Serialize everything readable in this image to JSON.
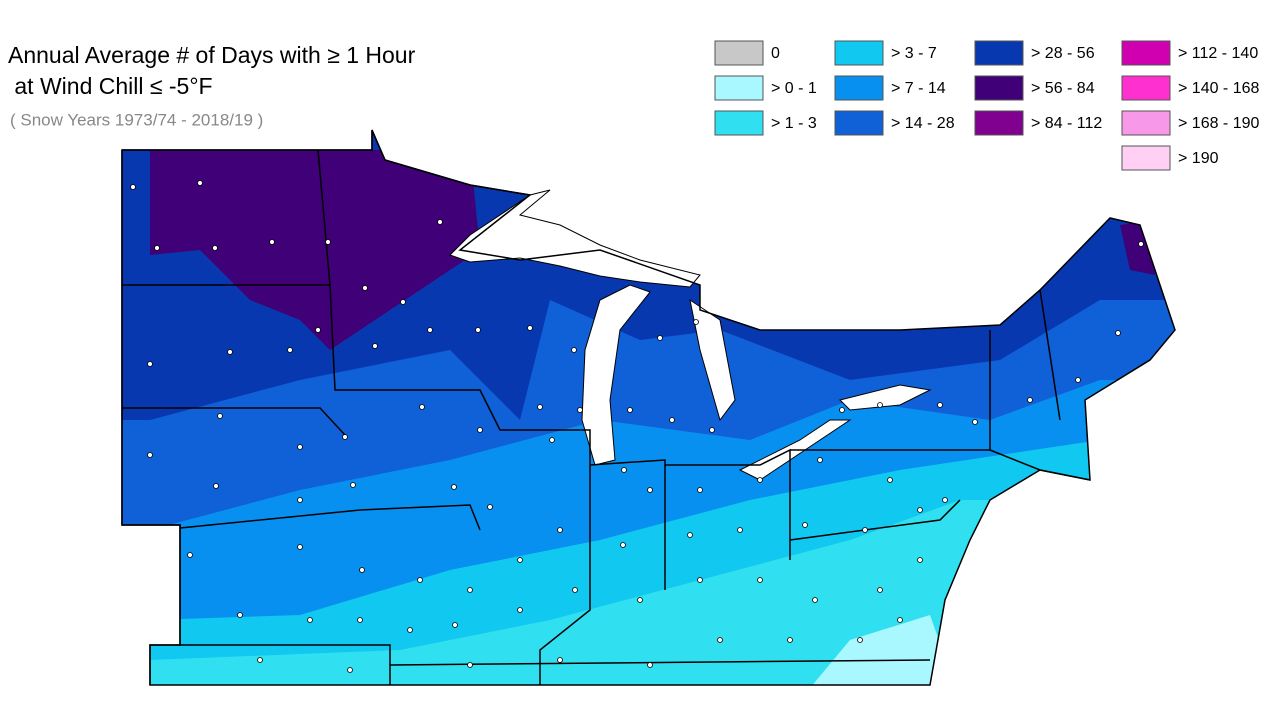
{
  "header": {
    "title_lines": [
      "Annual Average # of Days with ≥ 1 Hour",
      " at Wind Chill ≤ -5°F"
    ],
    "subtitle": "( Snow Years 1973/74 - 2018/19 )"
  },
  "legend": {
    "items": [
      {
        "label": "0",
        "color": "#c8c8c8"
      },
      {
        "label": "> 0 - 1",
        "color": "#aaf8ff"
      },
      {
        "label": "> 1 - 3",
        "color": "#30e0f0"
      },
      {
        "label": "> 3 - 7",
        "color": "#10c8f0"
      },
      {
        "label": "> 7 - 14",
        "color": "#0890f0"
      },
      {
        "label": "> 14 - 28",
        "color": "#1060d8"
      },
      {
        "label": "> 28 - 56",
        "color": "#0838b0"
      },
      {
        "label": "> 56 - 84",
        "color": "#400078"
      },
      {
        "label": "> 84 - 112",
        "color": "#800090"
      },
      {
        "label": "> 112 - 140",
        "color": "#d000b0"
      },
      {
        "label": "> 140 - 168",
        "color": "#ff30d0"
      },
      {
        "label": "> 168 - 190",
        "color": "#f898e8"
      },
      {
        "label": "> 190",
        "color": "#ffd0f4"
      }
    ]
  }
}
